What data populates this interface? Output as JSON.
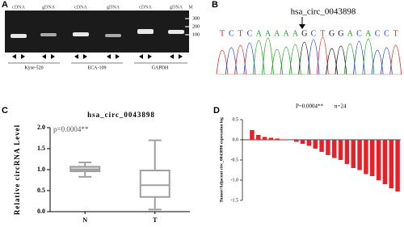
{
  "figure": {
    "panel_labels": [
      "A",
      "B",
      "C",
      "D"
    ],
    "gel": {
      "lanes": [
        "cDNA",
        "gDNA",
        "cDNA",
        "gDNA",
        "cDNA",
        "gDNA",
        "M"
      ],
      "groups": [
        "Kyse-520",
        "ECA-109",
        "GAPDH"
      ],
      "markers": [
        "300",
        "200",
        "100"
      ]
    },
    "sequence": {
      "label": "hsa_circ_0043898",
      "bases": [
        "T",
        "C",
        "T",
        "C",
        "A",
        "A",
        "A",
        "A",
        "A",
        "G",
        "C",
        "T",
        "G",
        "G",
        "A",
        "C",
        "A",
        "C",
        "C",
        "T"
      ]
    }
  },
  "chart_data": [
    {
      "type": "box",
      "title": "hsa_circ_0043898",
      "ylabel": "Relative circRNA Level",
      "annotation": "p=0.0004**",
      "categories": [
        "N",
        "T"
      ],
      "boxes": [
        {
          "min": 0.83,
          "q1": 0.96,
          "median": 1.0,
          "q3": 1.07,
          "max": 1.17
        },
        {
          "min": 0.05,
          "q1": 0.35,
          "median": 0.63,
          "q3": 0.98,
          "max": 1.7
        }
      ],
      "colors": [
        "#d4d4d4",
        "#ffffff"
      ],
      "stroke": "#a0a0a0",
      "ylim": [
        0,
        2
      ],
      "yticks": [
        {
          "value": 0,
          "label": "0.0"
        },
        {
          "value": 0.5,
          "label": "0.5"
        },
        {
          "value": 1,
          "label": "1.0"
        },
        {
          "value": 1.5,
          "label": "1.5"
        },
        {
          "value": 2,
          "label": "2.0"
        }
      ]
    },
    {
      "type": "bar",
      "ylabel": "Tumor/Adjacent circ_0043898 expression log",
      "annotation": "P=0.0004**",
      "n_label": "n=24",
      "values": [
        0.24,
        0.12,
        0.07,
        0.05,
        0.03,
        0.01,
        -0.01,
        -0.05,
        -0.1,
        -0.15,
        -0.22,
        -0.3,
        -0.38,
        -0.45,
        -0.5,
        -0.6,
        -0.7,
        -0.75,
        -0.85,
        -0.9,
        -1.0,
        -1.1,
        -1.2,
        -1.28
      ],
      "color": "#e8202a",
      "ylim": [
        -1.5,
        0.5
      ],
      "yticks": [
        {
          "value": -1.5,
          "label": "-1.5"
        },
        {
          "value": -1,
          "label": "-1.0"
        },
        {
          "value": -0.5,
          "label": "-0.5"
        },
        {
          "value": 0,
          "label": "0.0"
        },
        {
          "value": 0.5,
          "label": "0.5"
        }
      ]
    }
  ]
}
